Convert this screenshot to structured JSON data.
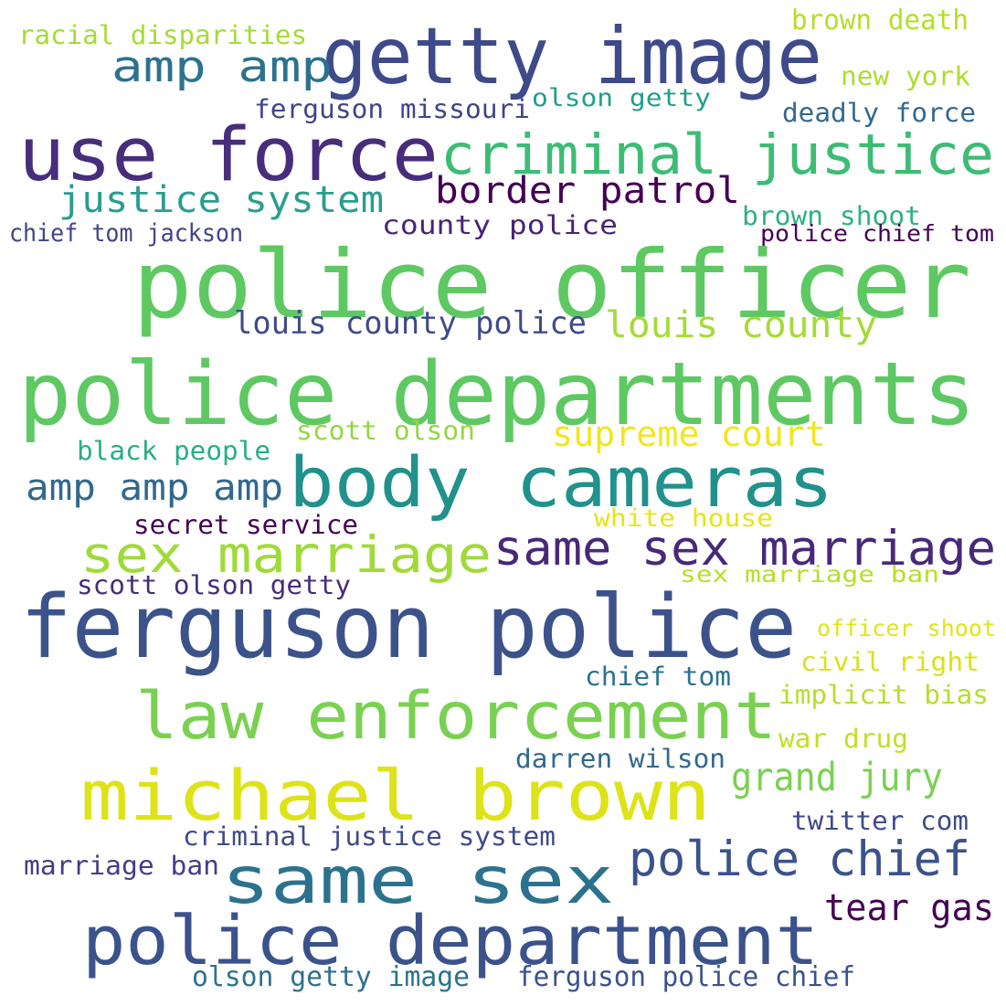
{
  "words": [
    {
      "text": "police officer",
      "color": "#5ec962"
    },
    {
      "text": "police departments",
      "color": "#5ec962"
    },
    {
      "text": "ferguson police",
      "color": "#3b528b"
    },
    {
      "text": "getty image",
      "color": "#3e4a89"
    },
    {
      "text": "use force",
      "color": "#472d7b"
    },
    {
      "text": "body cameras",
      "color": "#21918c"
    },
    {
      "text": "law enforcement",
      "color": "#7ad151"
    },
    {
      "text": "michael brown",
      "color": "#dde318"
    },
    {
      "text": "same sex",
      "color": "#2c728e"
    },
    {
      "text": "police department",
      "color": "#3b528b"
    },
    {
      "text": "criminal justice",
      "color": "#3dbc74"
    },
    {
      "text": "sex marriage",
      "color": "#a0da39"
    },
    {
      "text": "same sex marriage",
      "color": "#482878"
    },
    {
      "text": "police chief",
      "color": "#3b528b"
    },
    {
      "text": "amp amp",
      "color": "#2c728e"
    },
    {
      "text": "justice system",
      "color": "#2a9d8f"
    },
    {
      "text": "border patrol",
      "color": "#440154"
    },
    {
      "text": "louis county",
      "color": "#a5db36"
    },
    {
      "text": "supreme court",
      "color": "#f3e51e"
    },
    {
      "text": "amp amp amp",
      "color": "#31688e"
    },
    {
      "text": "grand jury",
      "color": "#7ad151"
    },
    {
      "text": "louis county police",
      "color": "#3e4a89"
    },
    {
      "text": "tear gas",
      "color": "#440154"
    },
    {
      "text": "racial disparities",
      "color": "#a5db36"
    },
    {
      "text": "brown death",
      "color": "#b5de2b"
    },
    {
      "text": "new york",
      "color": "#addc30"
    },
    {
      "text": "olson getty",
      "color": "#1f9e89"
    },
    {
      "text": "ferguson missouri",
      "color": "#414487"
    },
    {
      "text": "deadly force",
      "color": "#31688e"
    },
    {
      "text": "brown shoot",
      "color": "#2db27d"
    },
    {
      "text": "county police",
      "color": "#482475"
    },
    {
      "text": "chief tom jackson",
      "color": "#414487"
    },
    {
      "text": "police chief tom",
      "color": "#440154"
    },
    {
      "text": "scott olson",
      "color": "#93d741"
    },
    {
      "text": "black people",
      "color": "#28ae80"
    },
    {
      "text": "secret service",
      "color": "#440154"
    },
    {
      "text": "white house",
      "color": "#e7e419"
    },
    {
      "text": "scott olson getty",
      "color": "#472d7b"
    },
    {
      "text": "sex marriage ban",
      "color": "#b8de29"
    },
    {
      "text": "officer shoot",
      "color": "#e2e418"
    },
    {
      "text": "civil right",
      "color": "#d8e219"
    },
    {
      "text": "chief tom",
      "color": "#2c728e"
    },
    {
      "text": "implicit bias",
      "color": "#b5de2b"
    },
    {
      "text": "war drug",
      "color": "#c2df23"
    },
    {
      "text": "darren wilson",
      "color": "#31688e"
    },
    {
      "text": "criminal justice system",
      "color": "#3e4a89"
    },
    {
      "text": "twitter com",
      "color": "#3e4a89"
    },
    {
      "text": "marriage ban",
      "color": "#433e85"
    },
    {
      "text": "olson getty image",
      "color": "#2c728e"
    },
    {
      "text": "ferguson police chief",
      "color": "#3b528b"
    }
  ]
}
